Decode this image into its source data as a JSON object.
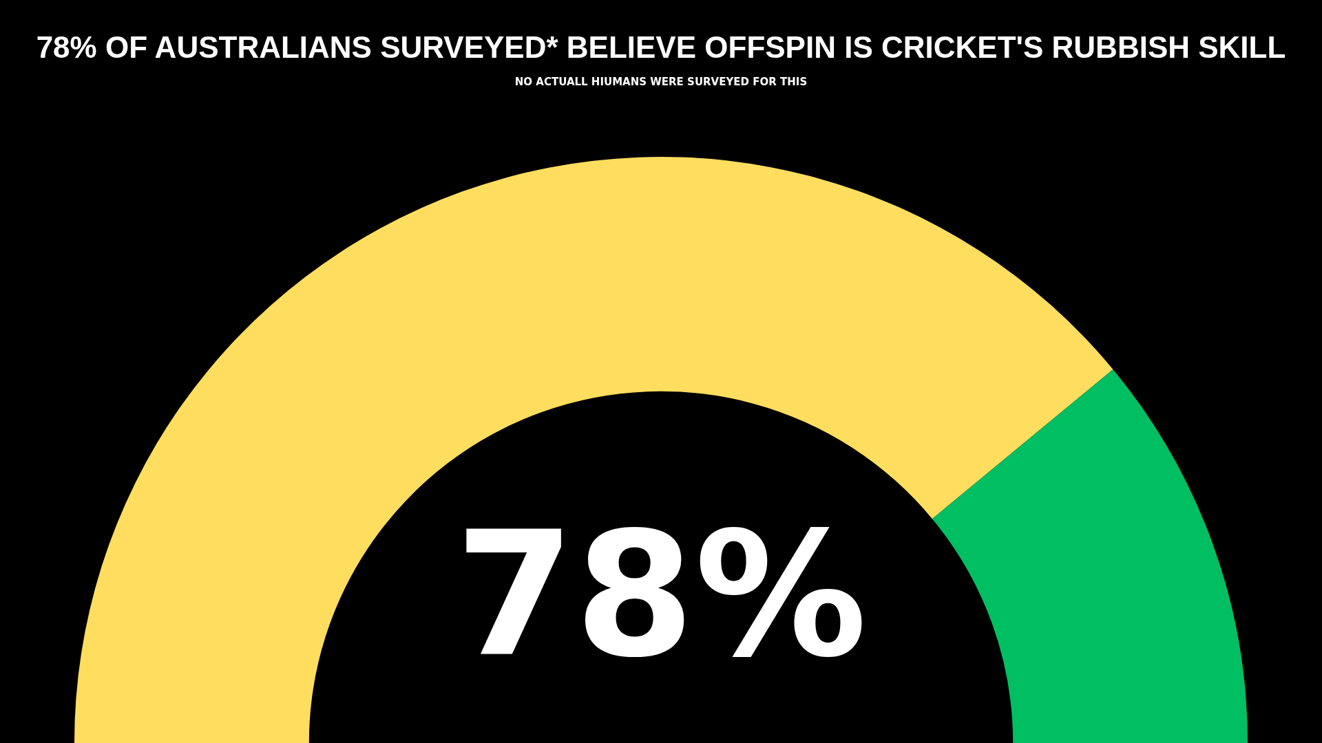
{
  "chart_data": {
    "type": "donut",
    "title": "78% OF AUSTRALIANS SURVEYED* BELIEVE OFFSPIN IS CRICKET'S RUBBISH SKILL",
    "subtitle": "NO ACTUALL HIUMANS WERE SURVEYED FOR THIS",
    "categories": [
      null,
      null
    ],
    "values": [
      78,
      22
    ],
    "colors": [
      "#fedd5f",
      "#00bf63"
    ],
    "value_labels": [
      "78%",
      null
    ]
  }
}
